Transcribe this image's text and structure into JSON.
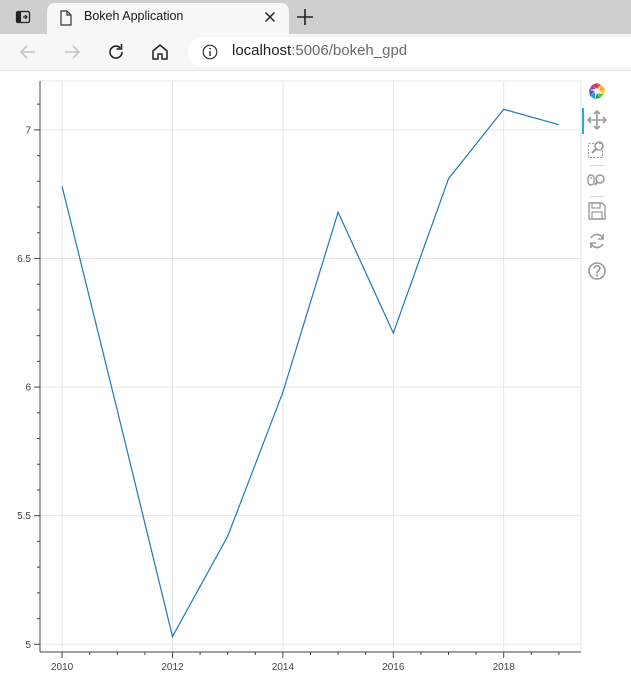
{
  "browser": {
    "tab": {
      "title": "Bokeh Application"
    },
    "address": {
      "host": "localhost",
      "path": ":5006/bokeh_gpd"
    }
  },
  "bokeh_toolbar": {
    "tools": [
      "bokeh-logo-icon",
      "pan-icon",
      "box-zoom-icon",
      "wheel-zoom-icon",
      "save-icon",
      "reset-icon",
      "help-icon"
    ],
    "active": "pan-icon"
  },
  "colors": {
    "line": "#1f77b4",
    "grid": "#e5e5e5",
    "axis": "#444444",
    "active_tool": "#26aae1"
  },
  "chart_data": {
    "type": "line",
    "title": "",
    "xlabel": "",
    "ylabel": "",
    "xlim": [
      2009.6,
      2019.4
    ],
    "ylim": [
      4.97,
      7.19
    ],
    "x_ticks": [
      2010,
      2012,
      2014,
      2016,
      2018
    ],
    "x_tick_labels": [
      "2010",
      "2012",
      "2014",
      "2016",
      "2018"
    ],
    "y_ticks": [
      5,
      5.5,
      6,
      6.5,
      7
    ],
    "y_tick_labels": [
      "5",
      "5.5",
      "6",
      "6.5",
      "7"
    ],
    "grid": true,
    "series": [
      {
        "x": [
          2010,
          2011,
          2012,
          2013,
          2014,
          2015,
          2016,
          2017,
          2018,
          2019
        ],
        "values": [
          6.78,
          5.91,
          5.03,
          5.42,
          5.98,
          6.68,
          6.21,
          6.81,
          7.08,
          7.02
        ]
      }
    ]
  }
}
